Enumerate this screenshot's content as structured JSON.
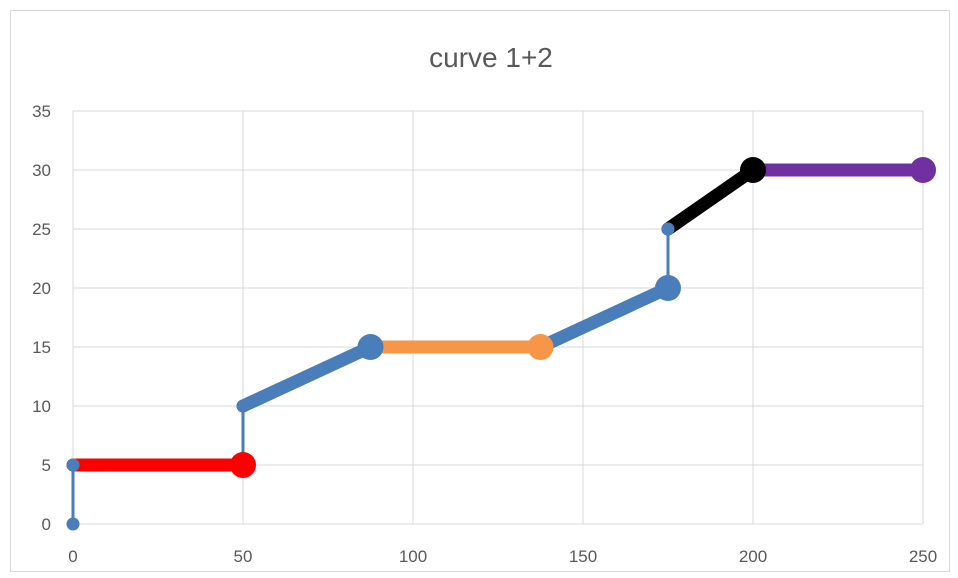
{
  "chart_data": {
    "type": "line",
    "title": "curve 1+2",
    "xlabel": "",
    "ylabel": "",
    "xlim": [
      0,
      250
    ],
    "ylim": [
      0,
      35
    ],
    "x_ticks": [
      0,
      50,
      100,
      150,
      200,
      250
    ],
    "y_ticks": [
      0,
      5,
      10,
      15,
      20,
      25,
      30,
      35
    ],
    "grid": true,
    "legend": "none",
    "series": [
      {
        "color": "#4a7ebb",
        "style": "thin",
        "marker": "small",
        "points": [
          [
            0,
            0
          ],
          [
            0,
            5
          ]
        ]
      },
      {
        "color": "#ff0000",
        "style": "thick",
        "marker": "end-large",
        "points": [
          [
            0,
            5
          ],
          [
            50,
            5
          ]
        ]
      },
      {
        "color": "#4a7ebb",
        "style": "thin",
        "marker": "none",
        "points": [
          [
            50,
            5
          ],
          [
            50,
            10
          ]
        ]
      },
      {
        "color": "#4a7ebb",
        "style": "thick",
        "marker": "start-small-end-large",
        "points": [
          [
            50,
            10
          ],
          [
            87.5,
            15
          ]
        ]
      },
      {
        "color": "#f79646",
        "style": "thick",
        "marker": "end-large",
        "points": [
          [
            87.5,
            15
          ],
          [
            137.5,
            15
          ]
        ]
      },
      {
        "color": "#4a7ebb",
        "style": "thick",
        "marker": "end-large",
        "points": [
          [
            137.5,
            15
          ],
          [
            175,
            20
          ]
        ]
      },
      {
        "color": "#4a7ebb",
        "style": "thin",
        "marker": "end-small",
        "points": [
          [
            175,
            20
          ],
          [
            175,
            25
          ]
        ]
      },
      {
        "color": "#000000",
        "style": "thick",
        "marker": "end-large",
        "points": [
          [
            175,
            25
          ],
          [
            200,
            30
          ]
        ]
      },
      {
        "color": "#7030a0",
        "style": "thick",
        "marker": "end-large",
        "points": [
          [
            200,
            30
          ],
          [
            250,
            30
          ]
        ]
      }
    ]
  },
  "colors": {
    "grid": "#d9d9d9",
    "text": "#595959"
  }
}
